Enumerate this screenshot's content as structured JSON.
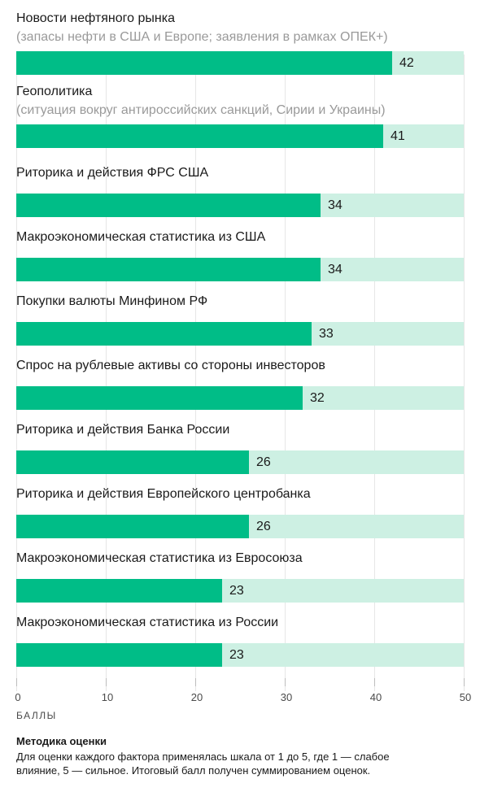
{
  "chart_data": {
    "type": "bar",
    "orientation": "horizontal",
    "categories": [
      {
        "label": "Новости нефтяного рынка",
        "sublabel": "(запасы нефти в США и Европе; заявления в рамках ОПЕК+)",
        "value": 42
      },
      {
        "label": "Геополитика",
        "sublabel": "(ситуация вокруг антироссийских санкций, Сирии и Украины)",
        "value": 41
      },
      {
        "label": "Риторика и действия ФРС США",
        "sublabel": "",
        "value": 34
      },
      {
        "label": "Макроэкономическая статистика из США",
        "sublabel": "",
        "value": 34
      },
      {
        "label": "Покупки валюты Минфином РФ",
        "sublabel": "",
        "value": 33
      },
      {
        "label": "Спрос на рублевые активы со стороны инвесторов",
        "sublabel": "",
        "value": 32
      },
      {
        "label": "Риторика и действия Банка России",
        "sublabel": "",
        "value": 26
      },
      {
        "label": "Риторика и действия Европейского центробанка",
        "sublabel": "",
        "value": 26
      },
      {
        "label": "Макроэкономическая статистика из Евросоюза",
        "sublabel": "",
        "value": 23
      },
      {
        "label": "Макроэкономическая статистика из России",
        "sublabel": "",
        "value": 23
      }
    ],
    "xlim": [
      0,
      50
    ],
    "xticks": [
      0,
      10,
      20,
      30,
      40,
      50
    ],
    "xlabel": "БАЛЛЫ",
    "colors": {
      "bar": "#00bd87",
      "track": "#cdf0e3"
    },
    "grid": true
  },
  "methodology": {
    "title": "Методика оценки",
    "text": "Для оценки каждого фактора применялась шкала от 1 до 5, где 1 — слабое влияние, 5 — сильное. Итоговый балл получен суммированием оценок."
  }
}
